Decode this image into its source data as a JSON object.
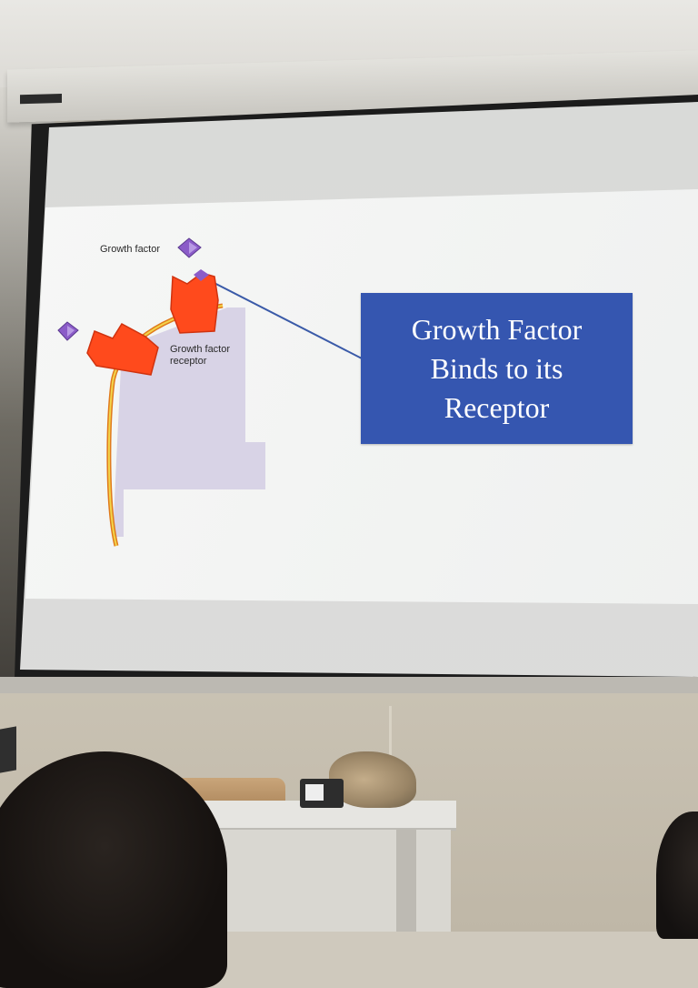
{
  "slide": {
    "growth_factor_label": "Growth factor",
    "receptor_label_line1": "Growth factor",
    "receptor_label_line2": "receptor",
    "callout": {
      "line1": "Growth Factor",
      "line2": "Binds to its",
      "line3": "Receptor"
    }
  },
  "colors": {
    "callout_bg": "#3556b0",
    "receptor_orange": "#ff4a1c",
    "ligand_purple": "#8b5cc8",
    "cell_lavender": "#d8d3e6"
  }
}
